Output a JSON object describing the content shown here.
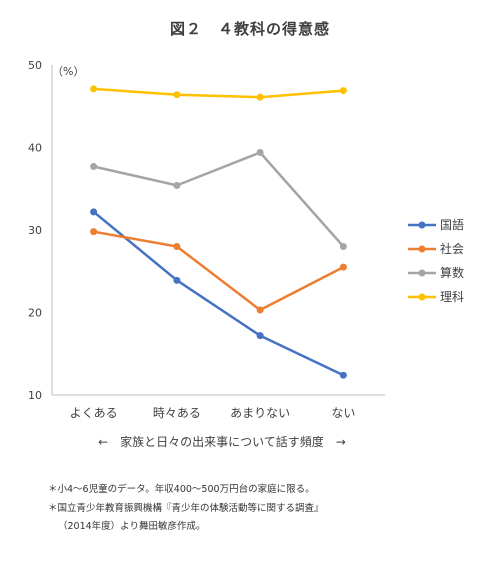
{
  "page": {
    "title": "図２　４教科の得意感"
  },
  "chart_data": {
    "type": "line",
    "title": "図２　４教科の得意感",
    "unit_label": "（%）",
    "xlabel": "←　家族と日々の出来事について話す頻度　→",
    "ylabel": "",
    "categories": [
      "よくある",
      "時々ある",
      "あまりない",
      "ない"
    ],
    "ylim": [
      10,
      50
    ],
    "yticks": [
      10,
      20,
      30,
      40,
      50
    ],
    "grid": false,
    "legend_position": "right",
    "series": [
      {
        "name": "国語",
        "color": "#4472C4",
        "values": [
          32.2,
          23.9,
          17.2,
          12.4
        ]
      },
      {
        "name": "社会",
        "color": "#ED7D31",
        "values": [
          29.8,
          28.0,
          20.3,
          25.5
        ]
      },
      {
        "name": "算数",
        "color": "#A5A5A5",
        "values": [
          37.7,
          35.4,
          39.4,
          28.0
        ]
      },
      {
        "name": "理科",
        "color": "#FFC000",
        "values": [
          47.1,
          46.4,
          46.1,
          46.9
        ]
      }
    ]
  },
  "notes": [
    "＊小4～6児童のデータ。年収400～500万円台の家庭に限る。",
    "＊国立青少年教育振興機構『青少年の体験活動等に関する調査』",
    "（2014年度）より舞田敏彦作成。"
  ]
}
